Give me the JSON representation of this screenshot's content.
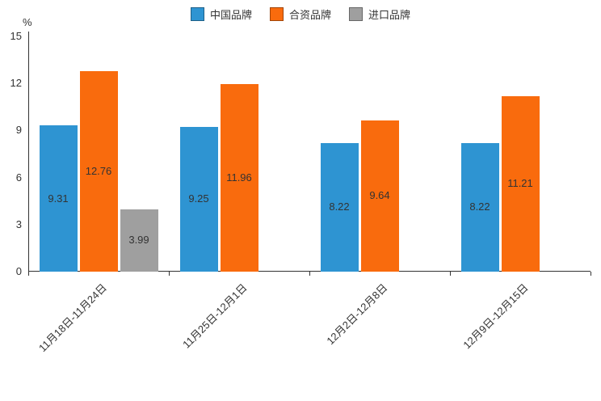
{
  "chart_data": {
    "type": "bar",
    "title": "",
    "unit_label": "%",
    "categories": [
      "11月18日-11月24日",
      "11月25日-12月1日",
      "12月2日-12月8日",
      "12月9日-12月15日"
    ],
    "series": [
      {
        "name": "中国品牌",
        "color": "#2e94d2",
        "values": [
          9.31,
          9.25,
          8.22,
          8.22
        ]
      },
      {
        "name": "合资品牌",
        "color": "#f96b0d",
        "values": [
          12.76,
          11.96,
          9.64,
          11.21
        ]
      },
      {
        "name": "进口品牌",
        "color": "#9f9f9f",
        "values": [
          3.99,
          null,
          null,
          null
        ]
      }
    ],
    "ylim": [
      0,
      15
    ],
    "yticks": [
      0,
      3,
      6,
      9,
      12,
      15
    ],
    "legend_position": "top",
    "grid": false,
    "axis_color": "#333333",
    "label_color": "#333333"
  }
}
